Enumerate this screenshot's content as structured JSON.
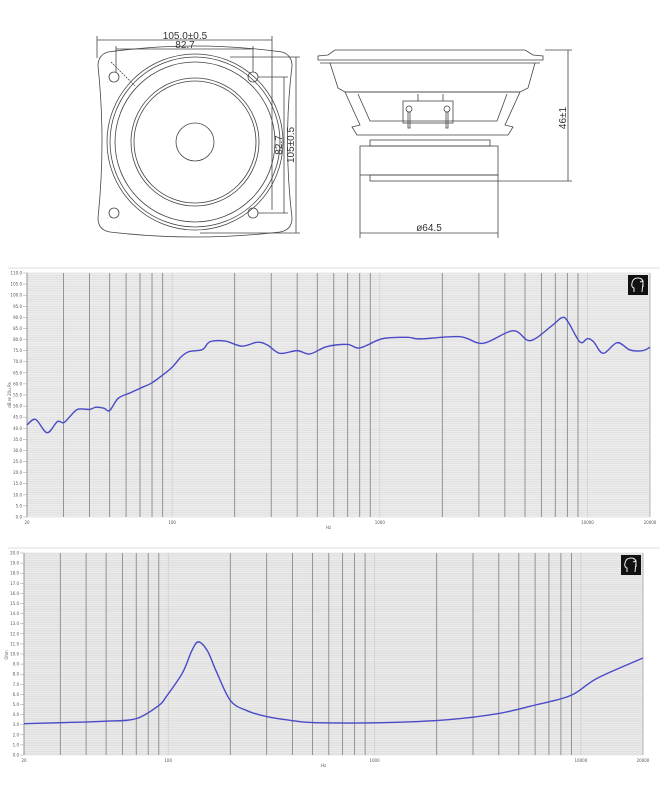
{
  "drawing": {
    "front_view": {
      "overall_width": "105.0±0.5",
      "hole_spacing_horizontal": "82.7",
      "hole_spacing_vertical": "82.7",
      "overall_height": "105±0.5"
    },
    "side_view": {
      "magnet_diameter": "ø64.5",
      "depth": "46±1"
    }
  },
  "icons": [
    "head-logo-icon"
  ],
  "colors": {
    "curve": "#4a4ac8",
    "grid_minor": "#d8d8d8",
    "grid_major": "#8a8a8a",
    "band": "#ececec"
  },
  "chart_data": [
    {
      "type": "line",
      "title": "",
      "xlabel": "Hz",
      "ylabel": "dB re 20u Pa",
      "xscale": "log",
      "xlim": [
        20,
        20000
      ],
      "ylim": [
        0,
        110
      ],
      "grid": true,
      "x_tick_labels": [
        "20",
        "100",
        "1000",
        "10000",
        "20000"
      ],
      "y_tick_labels": [
        "0.0",
        "5.0",
        "10.0",
        "15.0",
        "20.0",
        "25.0",
        "30.0",
        "35.0",
        "40.0",
        "45.0",
        "50.0",
        "55.0",
        "60.0",
        "65.0",
        "70.0",
        "75.0",
        "80.0",
        "85.0",
        "90.0",
        "95.0",
        "100.0",
        "105.0",
        "110.0"
      ],
      "series": [
        {
          "x": [
            20,
            22,
            25,
            28,
            30,
            32,
            35,
            40,
            43,
            47,
            50,
            55,
            63,
            70,
            80,
            90,
            100,
            110,
            120,
            140,
            152,
            180,
            217,
            257,
            288,
            330,
            400,
            460,
            555,
            700,
            800,
            1030,
            1360,
            1570,
            2430,
            3140,
            4380,
            5290,
            6650,
            7540,
            8060,
            9200,
            10000,
            10700,
            11900,
            13900,
            16000,
            18400,
            20000
          ],
          "y": [
            41.5,
            44,
            38,
            43,
            42.5,
            45,
            48.5,
            48.5,
            49.5,
            49,
            48,
            53.5,
            56,
            58,
            60.5,
            64,
            67.5,
            72,
            74.5,
            75.5,
            79,
            79.3,
            77,
            78.8,
            77.5,
            73.8,
            75,
            73.5,
            76.8,
            77.8,
            76.2,
            80.4,
            81,
            80.3,
            81.3,
            78.3,
            84,
            79.5,
            85.8,
            89.9,
            88,
            78.9,
            80.4,
            79,
            73.8,
            78.6,
            75.3,
            75,
            76.5
          ]
        }
      ]
    },
    {
      "type": "line",
      "title": "",
      "xlabel": "Hz",
      "ylabel": "Ohm",
      "xscale": "log",
      "xlim": [
        20,
        20000
      ],
      "ylim": [
        0,
        20
      ],
      "grid": true,
      "x_tick_labels": [
        "20",
        "100",
        "1000",
        "10000",
        "20000"
      ],
      "y_tick_labels": [
        "0.0",
        "1.0",
        "2.0",
        "3.0",
        "4.0",
        "5.0",
        "6.0",
        "7.0",
        "8.0",
        "9.0",
        "10.0",
        "11.0",
        "12.0",
        "13.0",
        "14.0",
        "15.0",
        "16.0",
        "17.0",
        "18.0",
        "19.0",
        "20.0"
      ],
      "series": [
        {
          "x": [
            20,
            30,
            50,
            70,
            90,
            98,
            117,
            130,
            140,
            155,
            170,
            200,
            240,
            300,
            400,
            520,
            1080,
            2280,
            3970,
            6150,
            8960,
            12000,
            20000
          ],
          "y": [
            3.1,
            3.2,
            3.35,
            3.6,
            4.9,
            5.8,
            8.1,
            10.3,
            11.2,
            10.3,
            8.4,
            5.4,
            4.4,
            3.8,
            3.4,
            3.2,
            3.2,
            3.5,
            4.1,
            5.0,
            5.9,
            7.6,
            9.6
          ]
        }
      ]
    }
  ]
}
